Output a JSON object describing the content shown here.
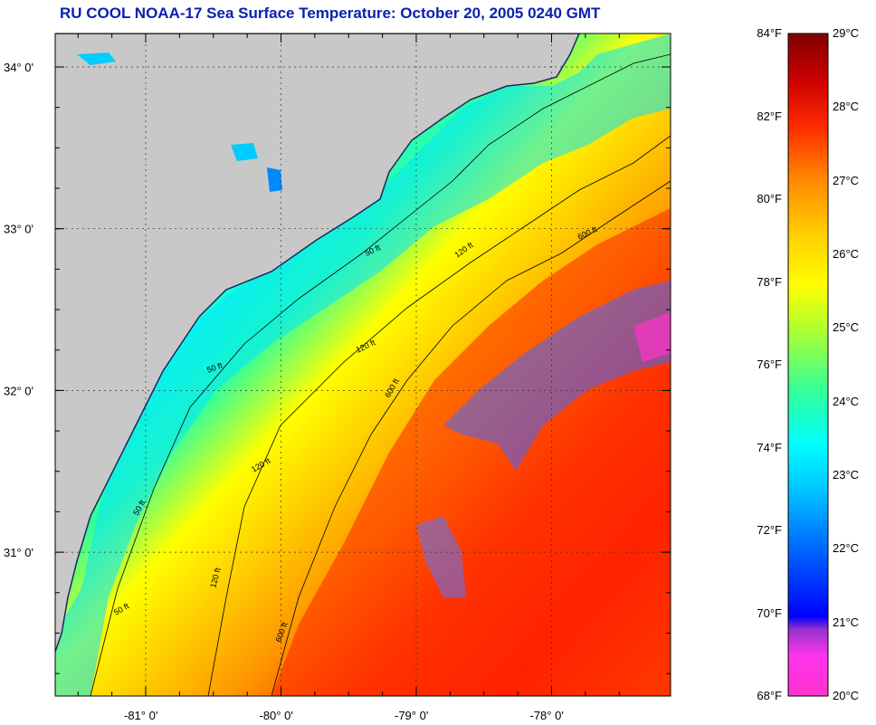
{
  "title": "RU COOL  NOAA-17  Sea Surface Temperature:  October 20, 2005 0240 GMT",
  "colors": {
    "land": "#c8c8c8",
    "title": "#0b20b0",
    "colormap": [
      "#ff33cc",
      "#9933cc",
      "#0000ff",
      "#0099ff",
      "#00ffff",
      "#33ff99",
      "#ffff00",
      "#ff9900",
      "#ff2a00",
      "#cc0000",
      "#800000"
    ]
  },
  "map": {
    "lat_ticks": [
      {
        "value": 34,
        "label": "34° 0'"
      },
      {
        "value": 33,
        "label": "33° 0'"
      },
      {
        "value": 32,
        "label": "32° 0'"
      },
      {
        "value": 31,
        "label": "31° 0'"
      }
    ],
    "lon_ticks": [
      {
        "value": -81,
        "label": "-81° 0'"
      },
      {
        "value": -80,
        "label": "-80° 0'"
      },
      {
        "value": -79,
        "label": "-79° 0'"
      },
      {
        "value": -78,
        "label": "-78° 0'"
      }
    ],
    "isobath_labels": [
      "50 ft",
      "120 ft",
      "600 ft"
    ]
  },
  "colorbar": {
    "fahrenheit": [
      "84°F",
      "82°F",
      "80°F",
      "78°F",
      "76°F",
      "74°F",
      "72°F",
      "70°F",
      "68°F"
    ],
    "celsius": [
      "29°C",
      "28°C",
      "27°C",
      "26°C",
      "25°C",
      "24°C",
      "23°C",
      "22°C",
      "21°C",
      "20°C"
    ]
  }
}
